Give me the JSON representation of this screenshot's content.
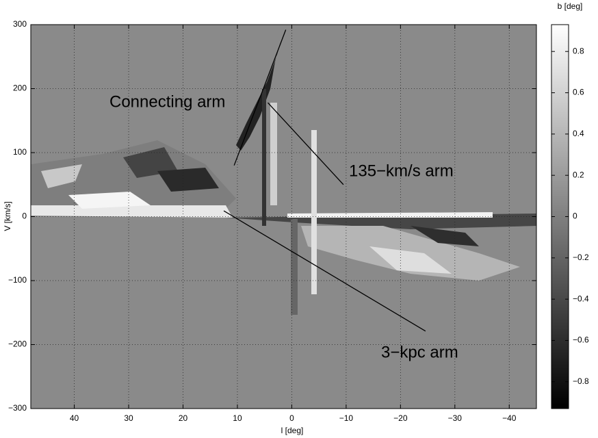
{
  "chart_data": {
    "type": "heatmap",
    "xlabel": "l  [deg]",
    "ylabel": "V  [km/s]",
    "xlim": [
      48,
      -45
    ],
    "ylim": [
      -300,
      300
    ],
    "xticks": [
      40,
      30,
      20,
      10,
      0,
      {
        "value": -10,
        "label": "−10"
      },
      {
        "value": -20,
        "label": "−20"
      },
      {
        "value": -30,
        "label": "−30"
      },
      {
        "value": -40,
        "label": "−40"
      }
    ],
    "yticks": [
      {
        "value": -300,
        "label": "−300"
      },
      {
        "value": -200,
        "label": "−200"
      },
      {
        "value": -100,
        "label": "−100"
      },
      0,
      100,
      200,
      300
    ],
    "grid": true,
    "colorbar": {
      "label": "b  [deg]",
      "lim": [
        -0.93,
        0.93
      ],
      "ticks": [
        {
          "value": -0.8,
          "label": "−0.8"
        },
        {
          "value": -0.6,
          "label": "−0.6"
        },
        {
          "value": -0.4,
          "label": "−0.4"
        },
        {
          "value": -0.2,
          "label": "−0.2"
        },
        0,
        0.2,
        0.4,
        0.6,
        0.8
      ],
      "colors": [
        "#000000",
        "#ffffff"
      ]
    },
    "annotations": [
      {
        "text": "Connecting arm",
        "line": {
          "x": [
            10.6,
            1.1
          ],
          "y": [
            80,
            292
          ]
        }
      },
      {
        "text": "135−km/s arm",
        "line": {
          "x": [
            4.4,
            -9.5
          ],
          "y": [
            178,
            50
          ]
        }
      },
      {
        "text": "3−kpc arm",
        "line": {
          "x": [
            12.5,
            -24.6
          ],
          "y": [
            9,
            -179
          ]
        }
      }
    ]
  }
}
